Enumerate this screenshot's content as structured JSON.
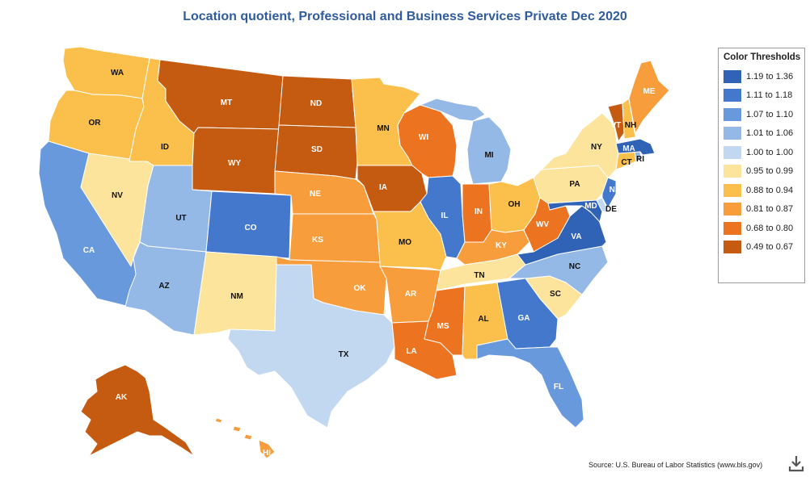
{
  "title": "Location quotient, Professional and Business Services Private Dec 2020",
  "legend": {
    "title": "Color Thresholds",
    "items": [
      {
        "label": "1.19 to 1.36",
        "color": "#3062b5"
      },
      {
        "label": "1.11 to 1.18",
        "color": "#4478cc"
      },
      {
        "label": "1.07 to 1.10",
        "color": "#6999dd"
      },
      {
        "label": "1.01 to 1.06",
        "color": "#94b9e6"
      },
      {
        "label": "1.00 to 1.00",
        "color": "#c2d7f0"
      },
      {
        "label": "0.95 to 0.99",
        "color": "#fce49c"
      },
      {
        "label": "0.88 to 0.94",
        "color": "#fbc04c"
      },
      {
        "label": "0.81 to 0.87",
        "color": "#f89d3c"
      },
      {
        "label": "0.68 to 0.80",
        "color": "#ec7420"
      },
      {
        "label": "0.49 to 0.67",
        "color": "#c55a11"
      }
    ]
  },
  "states": [
    {
      "code": "WA",
      "bin": 6
    },
    {
      "code": "OR",
      "bin": 6
    },
    {
      "code": "CA",
      "bin": 2
    },
    {
      "code": "NV",
      "bin": 5
    },
    {
      "code": "ID",
      "bin": 6
    },
    {
      "code": "MT",
      "bin": 9
    },
    {
      "code": "WY",
      "bin": 9
    },
    {
      "code": "UT",
      "bin": 3
    },
    {
      "code": "AZ",
      "bin": 3
    },
    {
      "code": "CO",
      "bin": 1
    },
    {
      "code": "NM",
      "bin": 5
    },
    {
      "code": "ND",
      "bin": 9
    },
    {
      "code": "SD",
      "bin": 9
    },
    {
      "code": "NE",
      "bin": 7
    },
    {
      "code": "KS",
      "bin": 7
    },
    {
      "code": "OK",
      "bin": 7
    },
    {
      "code": "TX",
      "bin": 4
    },
    {
      "code": "MN",
      "bin": 6
    },
    {
      "code": "IA",
      "bin": 9
    },
    {
      "code": "MO",
      "bin": 6
    },
    {
      "code": "AR",
      "bin": 7
    },
    {
      "code": "LA",
      "bin": 8
    },
    {
      "code": "WI",
      "bin": 8
    },
    {
      "code": "IL",
      "bin": 1
    },
    {
      "code": "MI",
      "bin": 3
    },
    {
      "code": "IN",
      "bin": 8
    },
    {
      "code": "OH",
      "bin": 6
    },
    {
      "code": "KY",
      "bin": 7
    },
    {
      "code": "TN",
      "bin": 5
    },
    {
      "code": "MS",
      "bin": 8
    },
    {
      "code": "AL",
      "bin": 6
    },
    {
      "code": "GA",
      "bin": 1
    },
    {
      "code": "FL",
      "bin": 2
    },
    {
      "code": "SC",
      "bin": 5
    },
    {
      "code": "NC",
      "bin": 3
    },
    {
      "code": "VA",
      "bin": 0
    },
    {
      "code": "WV",
      "bin": 8
    },
    {
      "code": "MD",
      "bin": 0
    },
    {
      "code": "DE",
      "bin": 4
    },
    {
      "code": "PA",
      "bin": 5
    },
    {
      "code": "NJ",
      "bin": 1
    },
    {
      "code": "NY",
      "bin": 5
    },
    {
      "code": "CT",
      "bin": 6
    },
    {
      "code": "RI",
      "bin": 3
    },
    {
      "code": "MA",
      "bin": 0
    },
    {
      "code": "VT",
      "bin": 9
    },
    {
      "code": "NH",
      "bin": 6
    },
    {
      "code": "ME",
      "bin": 7
    },
    {
      "code": "AK",
      "bin": 9
    },
    {
      "code": "HI",
      "bin": 7
    }
  ],
  "source": "Source: U.S. Bureau of Labor Statistics (www.bls.gov)",
  "icons": {
    "download": "download-icon"
  }
}
